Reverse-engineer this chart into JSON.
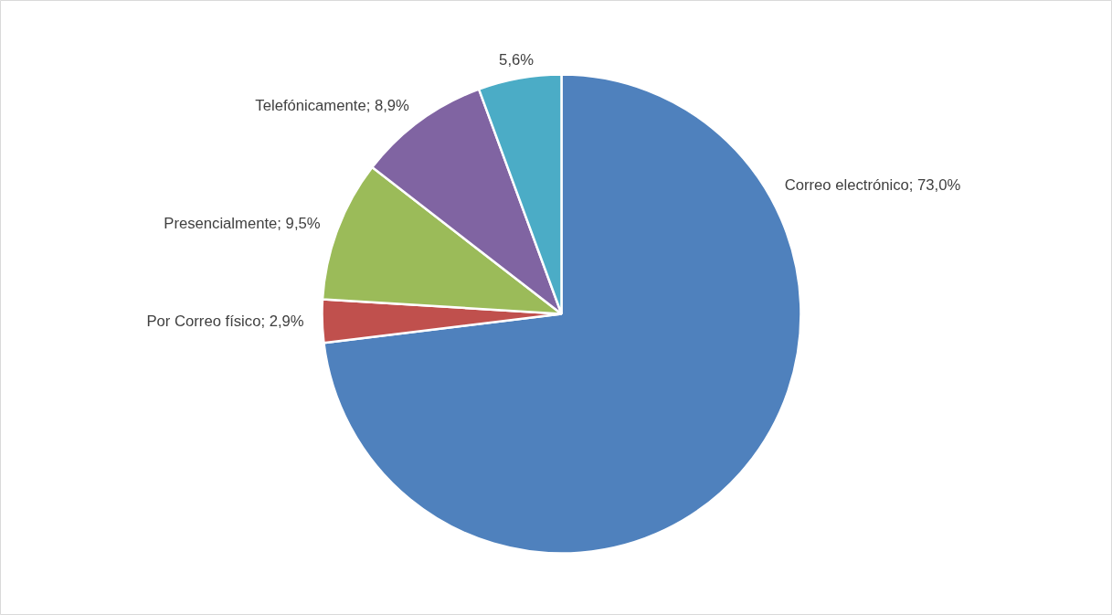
{
  "chart_data": {
    "type": "pie",
    "categories": [
      "Correo electrónico",
      "Por Correo físico",
      "Presencialmente",
      "Telefónicamente",
      null
    ],
    "values": [
      73.0,
      2.9,
      9.5,
      8.9,
      5.6
    ],
    "colors": [
      "#4f81bd",
      "#c0504d",
      "#9bbb59",
      "#8064a2",
      "#4bacc6"
    ],
    "value_labels": [
      "73,0%",
      "2,9%",
      "9,5%",
      "8,9%",
      "5,6%"
    ]
  }
}
